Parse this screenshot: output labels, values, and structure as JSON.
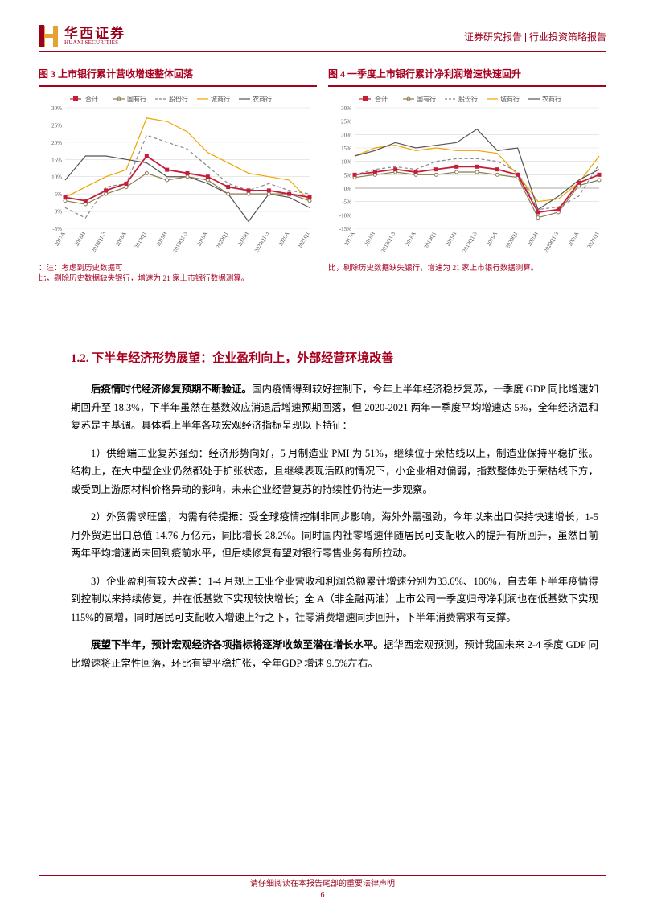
{
  "header": {
    "logo_cn": "华西证券",
    "logo_en": "HUAXI SECURITIES",
    "right_a": "证券研究报告",
    "right_b": "行业投资策略报告"
  },
  "charts": {
    "left": {
      "title": "图 3  上市银行累计营收增速整体回落",
      "footnote_line1": "：注：考虑到历史数据可",
      "footnote_line2": "比，剔除历史数据缺失银行，增速为 21 家上市银行数据测算。"
    },
    "right": {
      "title": "图 4  一季度上市银行累计净利润增速快速回升",
      "footnote": "比，剔除历史数据缺失银行，增速为 21 家上市银行数据测算。"
    },
    "legend_items": [
      "合计",
      "国有行",
      "股份行",
      "城商行",
      "农商行"
    ],
    "legend_colors": [
      "#c41e3a",
      "#8a7b4f",
      "#888888",
      "#f0a500",
      "#555555"
    ],
    "legend_marker": [
      "square",
      "line-dot",
      "dash",
      "line",
      "line"
    ],
    "x_labels": [
      "2017A",
      "2018H",
      "2018Q1-3",
      "2018A",
      "2019Q1",
      "2019H",
      "2019Q1-3",
      "2019A",
      "2020Q1",
      "2020H",
      "2020Q1-3",
      "2020A",
      "2021Q1"
    ],
    "left_ylim": [
      -5,
      30
    ],
    "left_ytick_step": 5,
    "right_ylim": [
      -15,
      30
    ],
    "right_ytick_step": 5,
    "series_left": {
      "hj": [
        4,
        3,
        6,
        8,
        16,
        12,
        11,
        10,
        7,
        6,
        6,
        5,
        4
      ],
      "gyh": [
        3,
        2,
        5,
        7,
        11,
        9,
        10,
        9,
        5,
        5,
        5,
        5,
        3
      ],
      "gfh": [
        1,
        -2,
        7,
        8,
        22,
        20,
        18,
        13,
        8,
        6,
        8,
        6,
        5
      ],
      "csh": [
        4,
        7,
        10,
        12,
        27,
        26,
        23,
        17,
        14,
        11,
        10,
        9,
        3
      ],
      "nsh": [
        9,
        16,
        16,
        15,
        14,
        10,
        10,
        8,
        5,
        -3,
        5,
        4,
        1
      ]
    },
    "series_right": {
      "hj": [
        5,
        6,
        7,
        6,
        7,
        8,
        8,
        7,
        5,
        -9,
        -8,
        2,
        5
      ],
      "gyh": [
        4,
        5,
        6,
        5,
        5,
        6,
        6,
        5,
        4,
        -11,
        -9,
        1,
        3
      ],
      "gfh": [
        5,
        7,
        8,
        7,
        10,
        11,
        11,
        10,
        6,
        -8,
        -7,
        -3,
        9
      ],
      "csh": [
        12,
        15,
        16,
        14,
        15,
        14,
        14,
        13,
        5,
        -5,
        -4,
        2,
        12
      ],
      "nsh": [
        12,
        14,
        17,
        15,
        16,
        17,
        22,
        14,
        15,
        -8,
        -3,
        3,
        7
      ]
    },
    "grid_color": "#d9d9d9",
    "axis_color": "#555555",
    "label_fontsize": 7
  },
  "section": {
    "heading": "1.2. 下半年经济形势展望：企业盈利向上，外部经营环境改善",
    "p1_lead": "后疫情时代经济修复预期不断验证。",
    "p1_rest": "国内疫情得到较好控制下，今年上半年经济稳步复苏，一季度 GDP 同比增速如期回升至 18.3%，下半年虽然在基数效应消退后增速预期回落，但 2020-2021 两年一季度平均增速达 5%，全年经济温和复苏是主基调。具体看上半年各项宏观经济指标呈现以下特征：",
    "p2": "1）供给端工业复苏强劲：经济形势向好，5 月制造业 PMI 为 51%，继续位于荣枯线以上，制造业保持平稳扩张。结构上，在大中型企业仍然都处于扩张状态，且继续表现活跃的情况下，小企业相对偏弱，指数整体处于荣枯线下方，或受到上游原材料价格异动的影响，未来企业经营复苏的持续性仍待进一步观察。",
    "p3": "2）外贸需求旺盛，内需有待提振：受全球疫情控制非同步影响，海外外需强劲，今年以来出口保持快速增长，1-5 月外贸进出口总值 14.76 万亿元，同比增长 28.2%。同时国内社零增速伴随居民可支配收入的提升有所回升，虽然目前两年平均增速尚未回到疫前水平，但后续修复有望对银行零售业务有所拉动。",
    "p4": "3）企业盈利有较大改善：1-4 月规上工业企业营收和利润总额累计增速分别为33.6%、106%，自去年下半年疫情得到控制以来持续修复，并在低基数下实现较快增长；全 A（非金融两油）上市公司一季度归母净利润也在低基数下实现 115%的高增，同时居民可支配收入增速上行之下，社零消费增速同步回升，下半年消费需求有支撑。",
    "p5_lead": "展望下半年，预计宏观经济各项指标将逐渐收敛至潜在增长水平。",
    "p5_rest": "据华西宏观预测，预计我国未来 2-4 季度 GDP 同比增速将正常性回落，环比有望平稳扩张，全年GDP 增速 9.5%左右。"
  },
  "footer": {
    "disclaimer": "请仔细阅读在本报告尾部的重要法律声明",
    "page": "6"
  }
}
